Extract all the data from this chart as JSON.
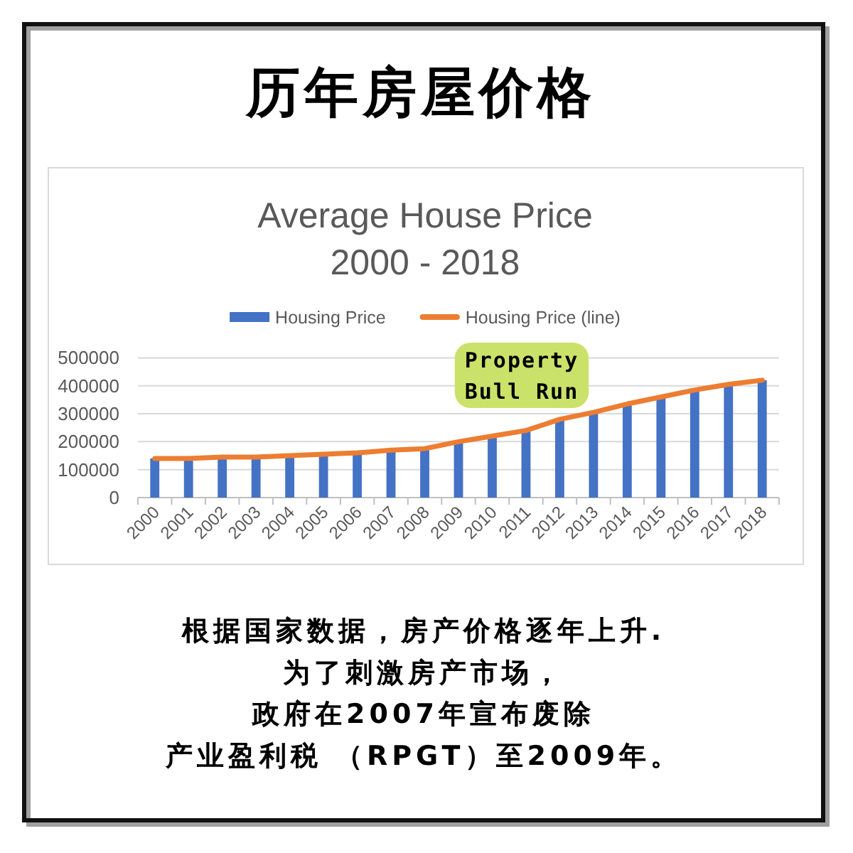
{
  "chart_data": {
    "type": "bar",
    "title": "历年房屋价格",
    "subtitle": "Average House Price\n2000 - 2018",
    "categories": [
      "2000",
      "2001",
      "2002",
      "2003",
      "2004",
      "2005",
      "2006",
      "2007",
      "2008",
      "2009",
      "2010",
      "2011",
      "2012",
      "2013",
      "2014",
      "2015",
      "2016",
      "2017",
      "2018"
    ],
    "series": [
      {
        "name": "Housing Price",
        "color": "#4472c4",
        "values": [
          140000,
          140000,
          145000,
          145000,
          150000,
          155000,
          160000,
          170000,
          175000,
          200000,
          220000,
          240000,
          280000,
          305000,
          335000,
          360000,
          385000,
          405000,
          420000
        ]
      },
      {
        "name": "Housing Price (line)",
        "type": "line",
        "color": "#ed7d31",
        "values": [
          140000,
          140000,
          145000,
          145000,
          150000,
          155000,
          160000,
          170000,
          175000,
          200000,
          220000,
          240000,
          280000,
          305000,
          335000,
          360000,
          385000,
          405000,
          420000
        ]
      }
    ],
    "ylim": [
      0,
      500000
    ],
    "yticks": [
      0,
      100000,
      200000,
      300000,
      400000,
      500000
    ],
    "grid": "y",
    "legend": "top",
    "annotations": [
      "Property Bull Run",
      "根据国家数据，房产价格逐年上升.",
      "为了刺激房产市场，",
      "政府在2007年宣布废除",
      "产业盈利税 （RPGT）至2009年。"
    ]
  }
}
